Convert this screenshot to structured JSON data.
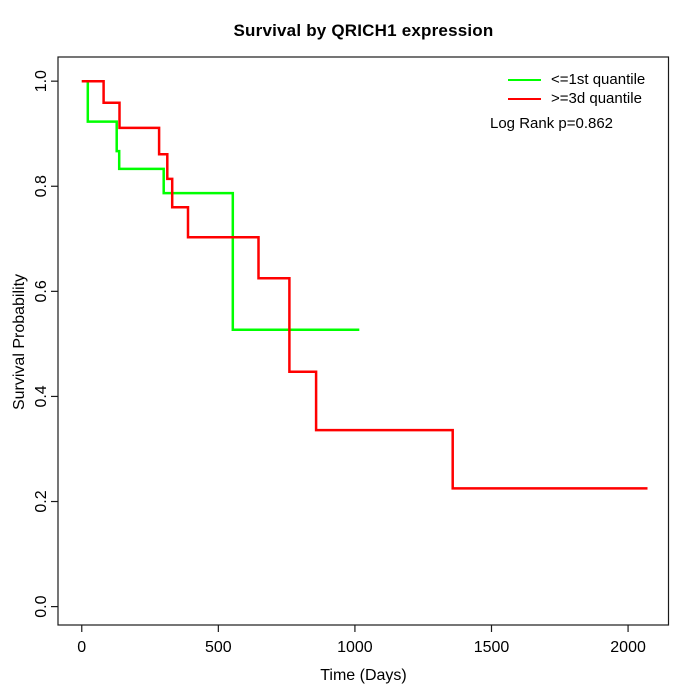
{
  "title": "Survival by QRICH1 expression",
  "axes": {
    "x": {
      "label": "Time (Days)"
    },
    "y": {
      "label": "Survival Probability"
    }
  },
  "legend": {
    "items": [
      {
        "label": "<=1st quantile",
        "color": "#00ff00"
      },
      {
        "label": ">=3d quantile",
        "color": "#ff0000"
      }
    ],
    "p_value_text": "Log Rank p=0.862"
  },
  "chart_data": {
    "type": "line",
    "subtype": "kaplan-meier-step",
    "title": "Survival by QRICH1 expression",
    "xlabel": "Time (Days)",
    "ylabel": "Survival Probability",
    "xlim": [
      -87,
      2148
    ],
    "ylim": [
      -0.035,
      1.046
    ],
    "x_ticks": [
      0,
      500,
      1000,
      1500,
      2000
    ],
    "y_ticks": [
      0,
      0.2,
      0.4,
      0.6,
      0.8,
      1.0
    ],
    "y_tick_labels": [
      "0.0",
      "0.2",
      "0.4",
      "0.6",
      "0.8",
      "1.0"
    ],
    "grid": false,
    "legend_position": "top-right",
    "annotations": [
      "Log Rank p=0.862"
    ],
    "series": [
      {
        "name": "<=1st quantile",
        "color": "#00ff00",
        "step_points": [
          [
            0,
            1.0
          ],
          [
            22,
            0.923
          ],
          [
            128,
            0.867
          ],
          [
            137,
            0.833
          ],
          [
            300,
            0.787
          ],
          [
            553,
            0.527
          ],
          [
            1016,
            0.527
          ]
        ]
      },
      {
        "name": ">=3d quantile",
        "color": "#ff0000",
        "step_points": [
          [
            0,
            1.0
          ],
          [
            80,
            0.959
          ],
          [
            138,
            0.911
          ],
          [
            283,
            0.861
          ],
          [
            313,
            0.814
          ],
          [
            331,
            0.76
          ],
          [
            389,
            0.703
          ],
          [
            647,
            0.625
          ],
          [
            760,
            0.447
          ],
          [
            858,
            0.336
          ],
          [
            1358,
            0.225
          ],
          [
            2071,
            0.225
          ]
        ]
      }
    ]
  }
}
